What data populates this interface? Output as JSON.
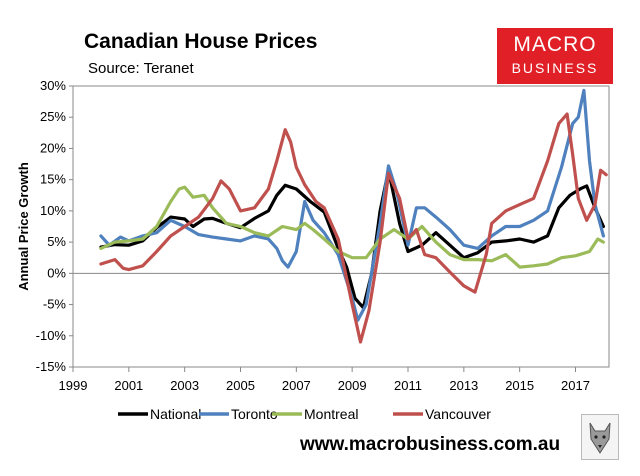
{
  "header": {
    "title": "Canadian House Prices",
    "subtitle": "Source: Teranet",
    "logo_line1": "MACRO",
    "logo_line2": "BUSINESS"
  },
  "footer": {
    "website": "www.macrobusiness.com.au"
  },
  "chart_data": {
    "type": "line",
    "title": "Canadian House Prices",
    "xlabel": "",
    "ylabel": "Annual Price Growth",
    "xlim": [
      1999,
      2018.2
    ],
    "ylim": [
      -15,
      30
    ],
    "x_ticks": [
      1999,
      2001,
      2003,
      2005,
      2007,
      2009,
      2011,
      2013,
      2015,
      2017
    ],
    "y_ticks": [
      {
        "value": -15,
        "label": "-15%"
      },
      {
        "value": -10,
        "label": "-10%"
      },
      {
        "value": -5,
        "label": "-5%"
      },
      {
        "value": 0,
        "label": "0%"
      },
      {
        "value": 5,
        "label": "5%"
      },
      {
        "value": 10,
        "label": "10%"
      },
      {
        "value": 15,
        "label": "15%"
      },
      {
        "value": 20,
        "label": "20%"
      },
      {
        "value": 25,
        "label": "25%"
      },
      {
        "value": 30,
        "label": "30%"
      }
    ],
    "legend_position": "bottom",
    "series": [
      {
        "name": "National",
        "color": "#000000",
        "points": [
          [
            2000,
            4.2
          ],
          [
            2000.5,
            4.6
          ],
          [
            2001,
            4.5
          ],
          [
            2001.5,
            5.2
          ],
          [
            2002,
            7.3
          ],
          [
            2002.5,
            9
          ],
          [
            2003,
            8.7
          ],
          [
            2003.3,
            7.5
          ],
          [
            2003.7,
            8.7
          ],
          [
            2004,
            8.8
          ],
          [
            2004.5,
            8
          ],
          [
            2005,
            7.3
          ],
          [
            2005.5,
            8.8
          ],
          [
            2006,
            10
          ],
          [
            2006.3,
            12.5
          ],
          [
            2006.6,
            14.1
          ],
          [
            2007,
            13.5
          ],
          [
            2007.5,
            11.5
          ],
          [
            2008,
            9.8
          ],
          [
            2008.5,
            4
          ],
          [
            2008.8,
            1
          ],
          [
            2009.1,
            -4
          ],
          [
            2009.4,
            -5.5
          ],
          [
            2009.7,
            0
          ],
          [
            2010,
            10
          ],
          [
            2010.3,
            16.5
          ],
          [
            2010.7,
            8
          ],
          [
            2011,
            3.5
          ],
          [
            2011.5,
            4.5
          ],
          [
            2012,
            6.5
          ],
          [
            2012.5,
            4.5
          ],
          [
            2013,
            2.5
          ],
          [
            2013.5,
            3.3
          ],
          [
            2014,
            5
          ],
          [
            2014.5,
            5.2
          ],
          [
            2015,
            5.5
          ],
          [
            2015.5,
            5
          ],
          [
            2016,
            6
          ],
          [
            2016.4,
            10.5
          ],
          [
            2016.8,
            12.5
          ],
          [
            2017.2,
            13.6
          ],
          [
            2017.4,
            14
          ],
          [
            2017.7,
            10.5
          ],
          [
            2018,
            7.5
          ]
        ]
      },
      {
        "name": "Toronto",
        "color": "#4e81bd",
        "points": [
          [
            2000,
            6
          ],
          [
            2000.3,
            4.5
          ],
          [
            2000.7,
            5.8
          ],
          [
            2001,
            5.2
          ],
          [
            2001.5,
            6
          ],
          [
            2002,
            6.5
          ],
          [
            2002.5,
            8.5
          ],
          [
            2003,
            7.5
          ],
          [
            2003.5,
            6.2
          ],
          [
            2004,
            5.8
          ],
          [
            2004.5,
            5.5
          ],
          [
            2005,
            5.2
          ],
          [
            2005.5,
            6
          ],
          [
            2006,
            5.5
          ],
          [
            2006.3,
            4
          ],
          [
            2006.5,
            2
          ],
          [
            2006.7,
            1
          ],
          [
            2007,
            3.5
          ],
          [
            2007.3,
            11.5
          ],
          [
            2007.6,
            8.5
          ],
          [
            2008,
            6.5
          ],
          [
            2008.5,
            3
          ],
          [
            2009,
            -4
          ],
          [
            2009.2,
            -7.5
          ],
          [
            2009.5,
            -5
          ],
          [
            2010,
            8
          ],
          [
            2010.3,
            17.2
          ],
          [
            2010.6,
            13
          ],
          [
            2011,
            4.5
          ],
          [
            2011.3,
            10.5
          ],
          [
            2011.6,
            10.5
          ],
          [
            2012,
            9
          ],
          [
            2012.5,
            7
          ],
          [
            2013,
            4.5
          ],
          [
            2013.5,
            4
          ],
          [
            2014,
            6
          ],
          [
            2014.5,
            7.5
          ],
          [
            2015,
            7.5
          ],
          [
            2015.5,
            8.5
          ],
          [
            2016,
            10
          ],
          [
            2016.5,
            17
          ],
          [
            2016.9,
            24
          ],
          [
            2017.1,
            25
          ],
          [
            2017.3,
            29.3
          ],
          [
            2017.5,
            18
          ],
          [
            2017.7,
            11
          ],
          [
            2018,
            6
          ]
        ]
      },
      {
        "name": "Montreal",
        "color": "#9bbb59",
        "points": [
          [
            2000,
            4
          ],
          [
            2000.5,
            5
          ],
          [
            2001,
            5.2
          ],
          [
            2001.5,
            5.5
          ],
          [
            2002,
            7.5
          ],
          [
            2002.5,
            11.5
          ],
          [
            2002.8,
            13.5
          ],
          [
            2003,
            13.8
          ],
          [
            2003.3,
            12.2
          ],
          [
            2003.7,
            12.5
          ],
          [
            2004,
            10.5
          ],
          [
            2004.5,
            8
          ],
          [
            2005,
            7.5
          ],
          [
            2005.5,
            6.5
          ],
          [
            2006,
            6
          ],
          [
            2006.5,
            7.5
          ],
          [
            2007,
            7
          ],
          [
            2007.3,
            8
          ],
          [
            2007.6,
            7
          ],
          [
            2008,
            5.5
          ],
          [
            2008.5,
            3.5
          ],
          [
            2009,
            2.5
          ],
          [
            2009.5,
            2.5
          ],
          [
            2010,
            5.5
          ],
          [
            2010.5,
            7
          ],
          [
            2011,
            5.5
          ],
          [
            2011.5,
            7.5
          ],
          [
            2012,
            5
          ],
          [
            2012.5,
            3
          ],
          [
            2013,
            2.2
          ],
          [
            2013.5,
            2.2
          ],
          [
            2014,
            2
          ],
          [
            2014.5,
            3
          ],
          [
            2015,
            1
          ],
          [
            2015.5,
            1.2
          ],
          [
            2016,
            1.5
          ],
          [
            2016.5,
            2.5
          ],
          [
            2017,
            2.8
          ],
          [
            2017.5,
            3.5
          ],
          [
            2017.8,
            5.5
          ],
          [
            2018,
            5
          ]
        ]
      },
      {
        "name": "Vancouver",
        "color": "#c0504d",
        "points": [
          [
            2000,
            1.5
          ],
          [
            2000.5,
            2.2
          ],
          [
            2000.8,
            0.8
          ],
          [
            2001,
            0.6
          ],
          [
            2001.5,
            1.2
          ],
          [
            2002,
            3.5
          ],
          [
            2002.5,
            6
          ],
          [
            2003,
            7.5
          ],
          [
            2003.5,
            9
          ],
          [
            2004,
            12
          ],
          [
            2004.3,
            14.8
          ],
          [
            2004.6,
            13.5
          ],
          [
            2005,
            10
          ],
          [
            2005.5,
            10.5
          ],
          [
            2006,
            13.5
          ],
          [
            2006.3,
            18
          ],
          [
            2006.6,
            23
          ],
          [
            2006.8,
            21
          ],
          [
            2007,
            17
          ],
          [
            2007.3,
            14.2
          ],
          [
            2007.7,
            11.5
          ],
          [
            2008,
            10.5
          ],
          [
            2008.5,
            5.5
          ],
          [
            2009,
            -5
          ],
          [
            2009.3,
            -11
          ],
          [
            2009.6,
            -6
          ],
          [
            2010,
            5
          ],
          [
            2010.3,
            16
          ],
          [
            2010.7,
            12
          ],
          [
            2011,
            5.5
          ],
          [
            2011.3,
            7
          ],
          [
            2011.6,
            3
          ],
          [
            2012,
            2.5
          ],
          [
            2012.5,
            0.2
          ],
          [
            2013,
            -2
          ],
          [
            2013.4,
            -3
          ],
          [
            2013.8,
            3
          ],
          [
            2014,
            8
          ],
          [
            2014.5,
            10
          ],
          [
            2015,
            11
          ],
          [
            2015.5,
            12
          ],
          [
            2016,
            18
          ],
          [
            2016.4,
            24
          ],
          [
            2016.7,
            25.5
          ],
          [
            2016.9,
            19
          ],
          [
            2017.1,
            12
          ],
          [
            2017.4,
            8.5
          ],
          [
            2017.7,
            11
          ],
          [
            2017.9,
            16.5
          ],
          [
            2018.1,
            15.8
          ]
        ]
      }
    ]
  }
}
